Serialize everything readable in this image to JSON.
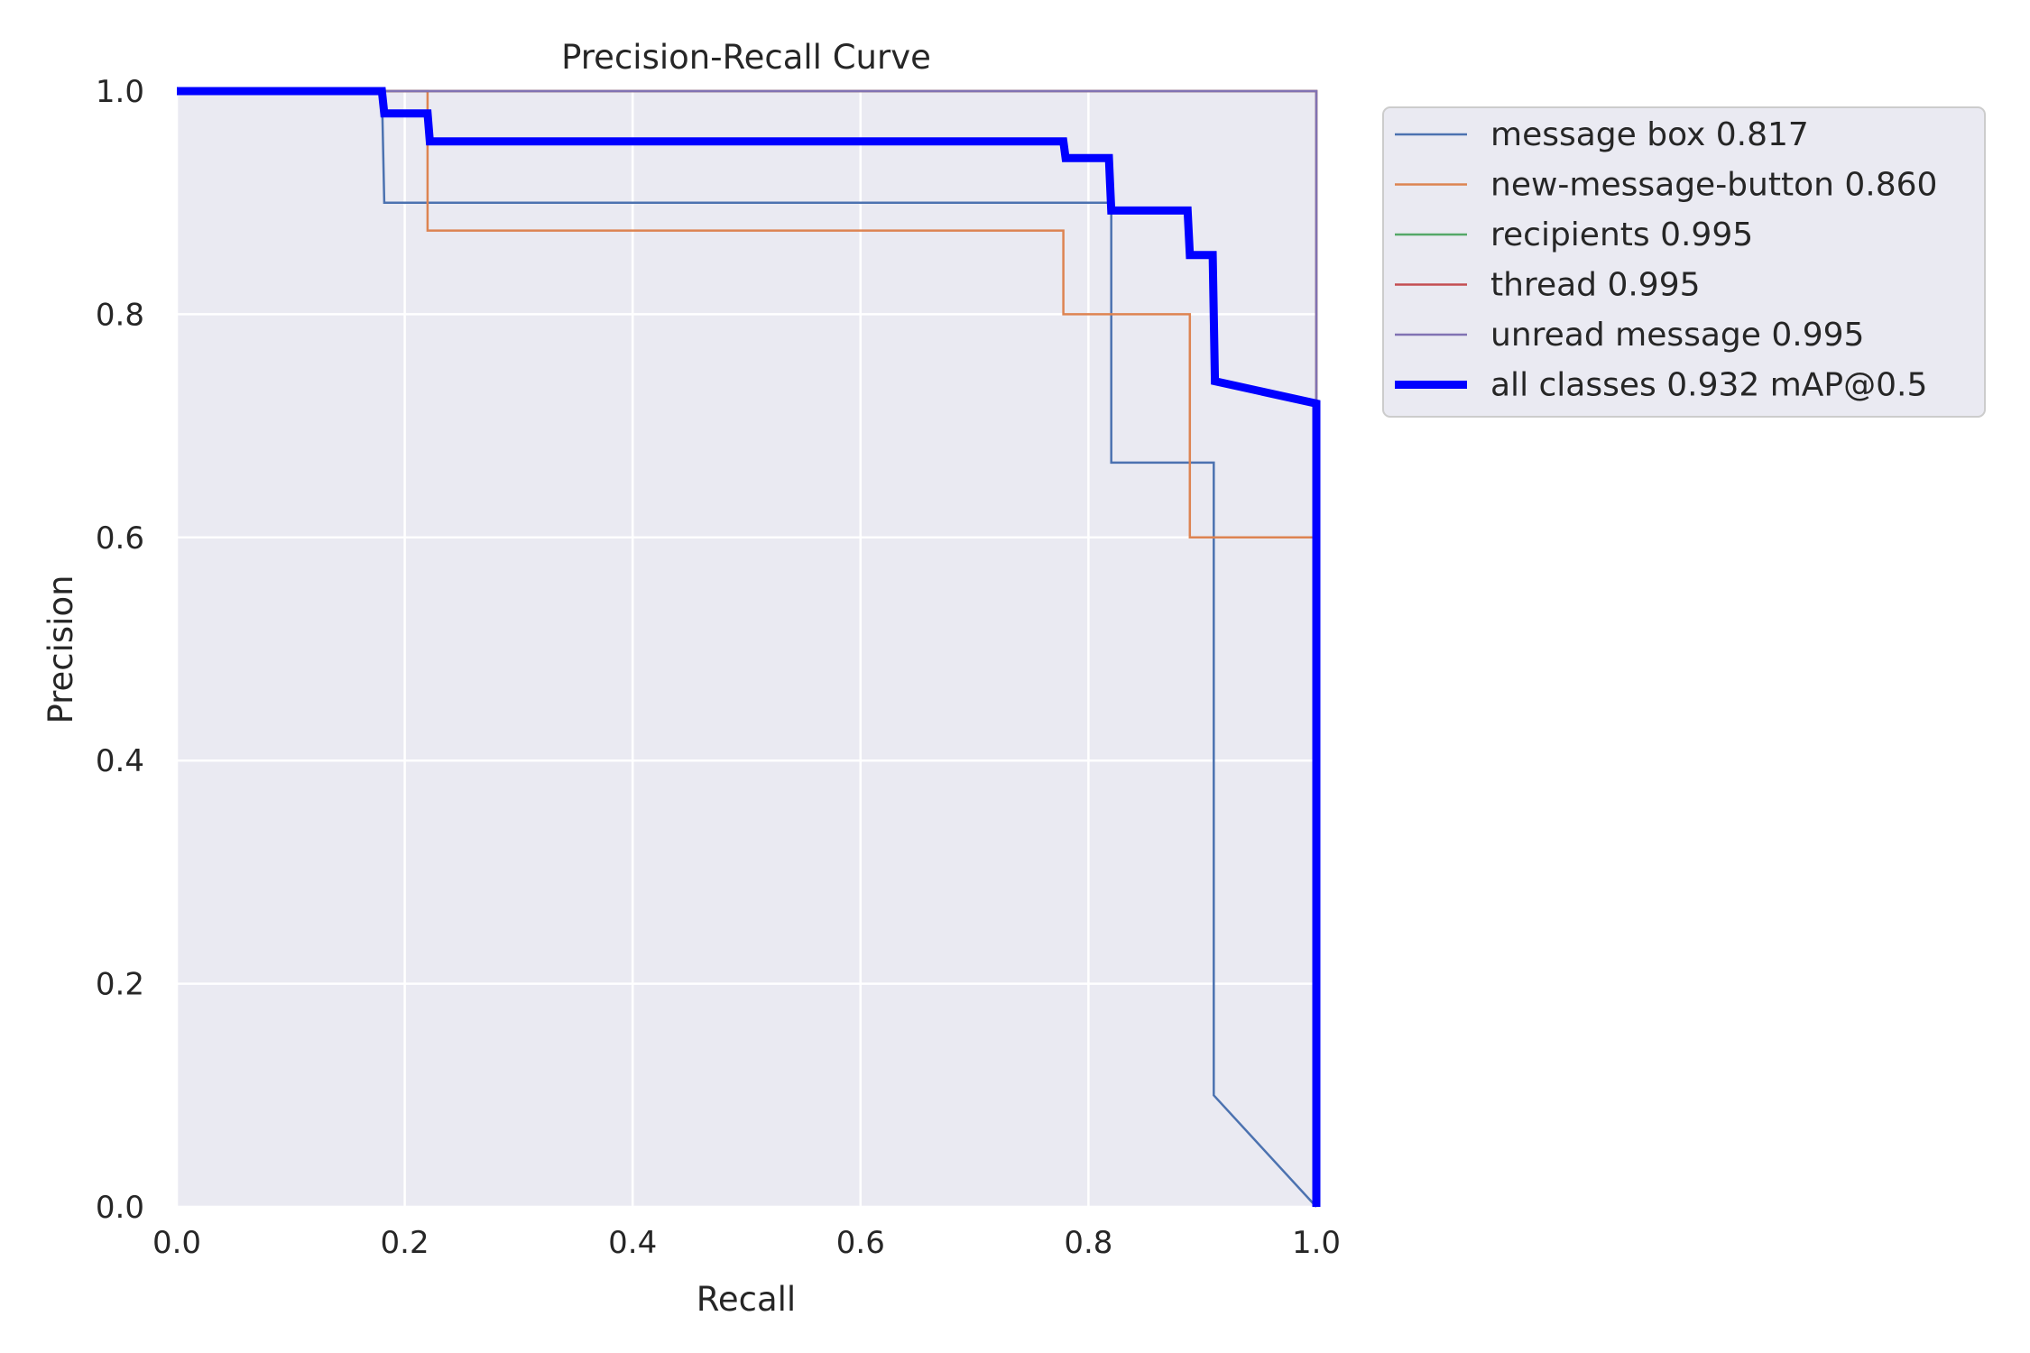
{
  "chart_data": {
    "type": "line",
    "title": "Precision-Recall Curve",
    "xlabel": "Recall",
    "ylabel": "Precision",
    "xlim": [
      0,
      1
    ],
    "ylim": [
      0,
      1
    ],
    "xticks": [
      "0.0",
      "0.2",
      "0.4",
      "0.6",
      "0.8",
      "1.0"
    ],
    "yticks": [
      "0.0",
      "0.2",
      "0.4",
      "0.6",
      "0.8",
      "1.0"
    ],
    "grid": true,
    "legend_position": "outside-upper-right",
    "series": [
      {
        "name": "message box 0.817",
        "color": "#4c72b0",
        "line_weight": "thin",
        "points": [
          [
            0,
            1
          ],
          [
            0.18,
            1
          ],
          [
            0.182,
            0.9
          ],
          [
            0.82,
            0.9
          ],
          [
            0.82,
            0.667
          ],
          [
            0.91,
            0.667
          ],
          [
            0.91,
            0.1
          ],
          [
            1.0,
            0.0
          ]
        ]
      },
      {
        "name": "new-message-button 0.860",
        "color": "#dd8452",
        "line_weight": "thin",
        "points": [
          [
            0,
            1
          ],
          [
            0.22,
            1
          ],
          [
            0.22,
            0.875
          ],
          [
            0.778,
            0.875
          ],
          [
            0.778,
            0.8
          ],
          [
            0.889,
            0.8
          ],
          [
            0.889,
            0.6
          ],
          [
            1.0,
            0.6
          ],
          [
            1.0,
            0.0
          ]
        ]
      },
      {
        "name": "recipients 0.995",
        "color": "#55a868",
        "line_weight": "thin",
        "points": [
          [
            0,
            1
          ],
          [
            1.0,
            1
          ],
          [
            1.0,
            0.0
          ]
        ]
      },
      {
        "name": "thread 0.995",
        "color": "#c44e52",
        "line_weight": "thin",
        "points": [
          [
            0,
            1
          ],
          [
            1.0,
            1
          ],
          [
            1.0,
            0.0
          ]
        ]
      },
      {
        "name": "unread message 0.995",
        "color": "#8172b3",
        "line_weight": "thin",
        "points": [
          [
            0,
            1
          ],
          [
            1.0,
            1
          ],
          [
            1.0,
            0.0
          ]
        ]
      },
      {
        "name": "all classes 0.932 mAP@0.5",
        "color": "#0000ff",
        "line_weight": "thick",
        "points": [
          [
            0,
            1
          ],
          [
            0.18,
            1
          ],
          [
            0.182,
            0.98
          ],
          [
            0.22,
            0.98
          ],
          [
            0.222,
            0.955
          ],
          [
            0.778,
            0.955
          ],
          [
            0.78,
            0.94
          ],
          [
            0.818,
            0.94
          ],
          [
            0.82,
            0.893
          ],
          [
            0.887,
            0.893
          ],
          [
            0.889,
            0.853
          ],
          [
            0.909,
            0.853
          ],
          [
            0.911,
            0.74
          ],
          [
            1.0,
            0.72
          ],
          [
            1.0,
            0.0
          ]
        ]
      }
    ]
  }
}
